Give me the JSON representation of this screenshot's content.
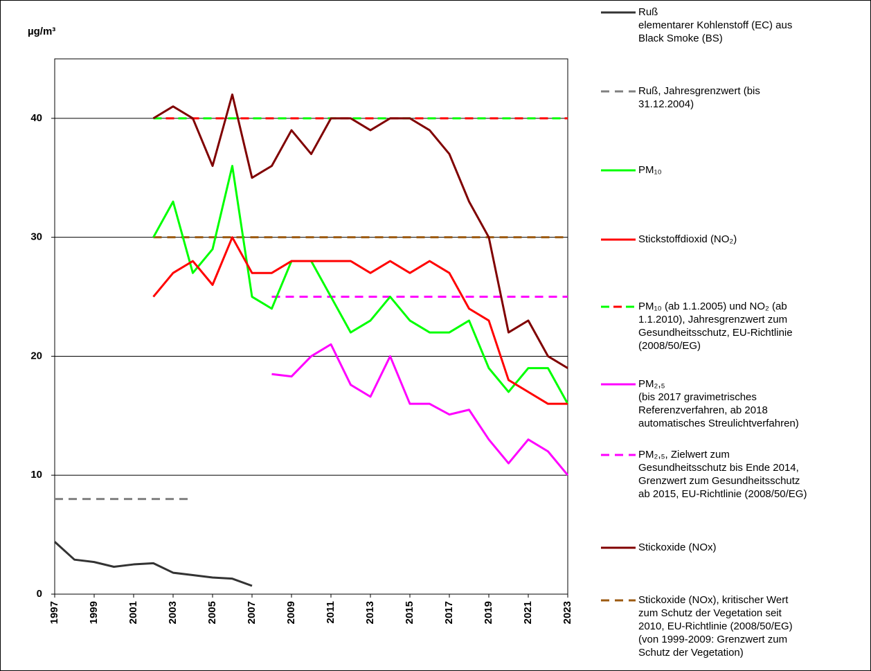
{
  "chart_data": {
    "type": "line",
    "y_label": "µg/m³",
    "xlim": [
      1997,
      2023
    ],
    "xticks": [
      1997,
      1999,
      2001,
      2003,
      2005,
      2007,
      2009,
      2011,
      2013,
      2015,
      2017,
      2019,
      2021,
      2023
    ],
    "ylim": [
      0,
      45
    ],
    "yticks": [
      0,
      10,
      20,
      30,
      40
    ],
    "grid": true,
    "series": [
      {
        "name": "Ruß, Jahresgrenzwert (bis\n31.12.2004)",
        "color": "#808080",
        "dash": true,
        "x": [
          1997,
          2004
        ],
        "values": [
          8,
          8
        ]
      },
      {
        "name": "Ruß\nelementarer Kohlenstoff (EC) aus\nBlack Smoke (BS)",
        "color": "#333333",
        "x": [
          1997,
          1998,
          1999,
          2000,
          2001,
          2002,
          2003,
          2004,
          2005,
          2006,
          2007
        ],
        "values": [
          4.4,
          2.9,
          2.7,
          2.3,
          2.5,
          2.6,
          1.8,
          1.6,
          1.4,
          1.3,
          0.7
        ]
      },
      {
        "name": "PM₁₀ (ab 1.1.2005) und NO₂ (ab\n1.1.2010), Jahresgrenzwert zum\nGesundheitsschutz,  EU-Richtlinie\n(2008/50/EG)",
        "color": "#00ff00",
        "color2": "#ff0000",
        "dash": true,
        "x": [
          2002,
          2023
        ],
        "values": [
          40,
          40
        ]
      },
      {
        "name": "Stickoxide (NOx), kritischer Wert\nzum Schutz der Vegetation seit\n2010, EU-Richtlinie (2008/50/EG)\n(von 1999-2009: Grenzwert zum\nSchutz der Vegetation)",
        "color": "#9c5a10",
        "dash": true,
        "x": [
          2002,
          2023
        ],
        "values": [
          30,
          30
        ]
      },
      {
        "name": "PM₂,₅, Zielwert zum\nGesundheitsschutz bis Ende 2014,\nGrenzwert zum Gesundheitsschutz\nab 2015, EU-Richtlinie (2008/50/EG)",
        "color": "#ff00ff",
        "dash": true,
        "x": [
          2008,
          2023
        ],
        "values": [
          25,
          25
        ]
      },
      {
        "name": "Stickoxide (NOx)",
        "color": "#800000",
        "x": [
          2002,
          2003,
          2004,
          2005,
          2006,
          2007,
          2008,
          2009,
          2010,
          2011,
          2012,
          2013,
          2014,
          2015,
          2016,
          2017,
          2018,
          2019,
          2020,
          2021,
          2022,
          2023
        ],
        "values": [
          40,
          41,
          40,
          36,
          42,
          35,
          36,
          39,
          37,
          40,
          40,
          39,
          40,
          40,
          39,
          37,
          33,
          30,
          22,
          23,
          20,
          19
        ]
      },
      {
        "name": "PM₁₀",
        "color": "#00ff00",
        "x": [
          2002,
          2003,
          2004,
          2005,
          2006,
          2007,
          2008,
          2009,
          2010,
          2011,
          2012,
          2013,
          2014,
          2015,
          2016,
          2017,
          2018,
          2019,
          2020,
          2021,
          2022,
          2023
        ],
        "values": [
          30,
          33,
          27,
          29,
          36,
          25,
          24,
          28,
          28,
          25,
          22,
          23,
          25,
          23,
          22,
          22,
          23,
          19,
          17,
          19,
          19,
          16
        ]
      },
      {
        "name": "Stickstoffdioxid (NO₂)",
        "color": "#ff0000",
        "x": [
          2002,
          2003,
          2004,
          2005,
          2006,
          2007,
          2008,
          2009,
          2010,
          2011,
          2012,
          2013,
          2014,
          2015,
          2016,
          2017,
          2018,
          2019,
          2020,
          2021,
          2022,
          2023
        ],
        "values": [
          25,
          27,
          28,
          26,
          30,
          27,
          27,
          28,
          28,
          28,
          28,
          27,
          28,
          27,
          28,
          27,
          24,
          23,
          18,
          17,
          16,
          16
        ]
      },
      {
        "name": "PM₂,₅\n(bis 2017 gravimetrisches\nReferenzverfahren,  ab 2018\nautomatisches Streulichtverfahren)",
        "color": "#ff00ff",
        "x": [
          2008,
          2009,
          2010,
          2011,
          2012,
          2013,
          2014,
          2015,
          2016,
          2017,
          2018,
          2019,
          2020,
          2021,
          2022,
          2023
        ],
        "values": [
          18.5,
          18.3,
          20,
          21,
          17.6,
          16.6,
          20,
          16,
          16,
          15.1,
          15.5,
          13,
          11,
          13,
          12,
          10
        ]
      }
    ]
  }
}
